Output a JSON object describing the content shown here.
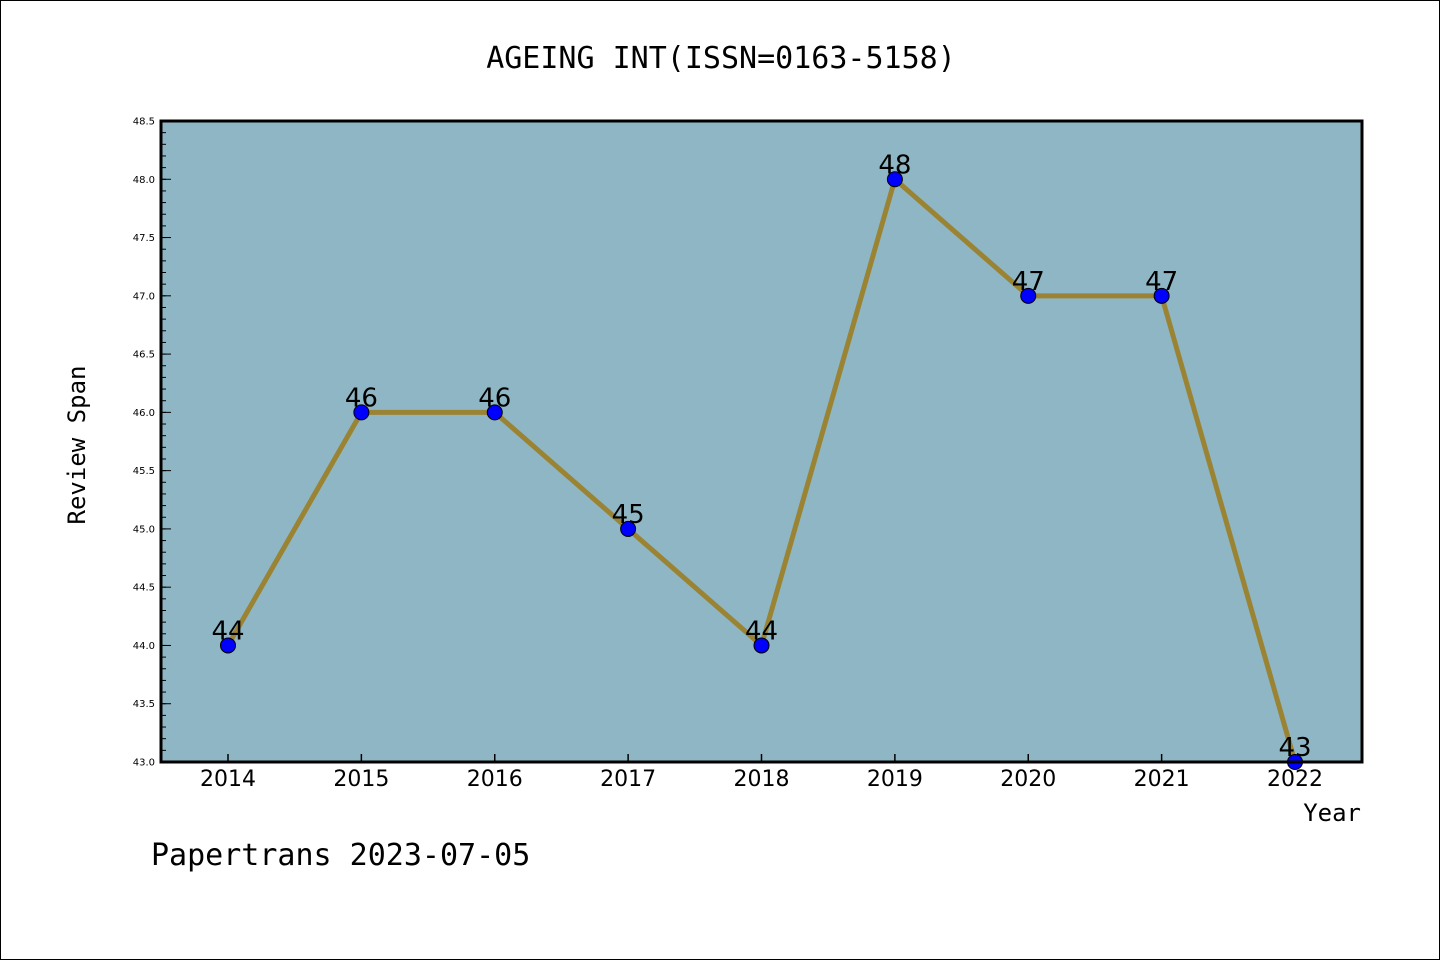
{
  "chart_data": {
    "type": "line",
    "title": "AGEING INT(ISSN=0163-5158)",
    "xlabel": "Year",
    "ylabel": "Review Span",
    "categories": [
      "2014",
      "2015",
      "2016",
      "2017",
      "2018",
      "2019",
      "2020",
      "2021",
      "2022"
    ],
    "series": [
      {
        "values": [
          44,
          46,
          46,
          45,
          44,
          48,
          47,
          47,
          43
        ]
      }
    ],
    "data_labels": [
      "44",
      "46",
      "46",
      "45",
      "44",
      "48",
      "47",
      "47",
      "43"
    ],
    "yticks": [
      "43.0",
      "43.5",
      "44.0",
      "44.5",
      "45.0",
      "45.5",
      "46.0",
      "46.5",
      "47.0",
      "47.5",
      "48.0",
      "48.5"
    ],
    "ylim": [
      43.0,
      48.5
    ],
    "grid": false,
    "colors": {
      "plot_background": "#8fb6c4",
      "line": "#9a8434",
      "marker": "#0000ff",
      "axes": "#000000"
    }
  },
  "footer": {
    "text": "Papertrans 2023-07-05"
  }
}
